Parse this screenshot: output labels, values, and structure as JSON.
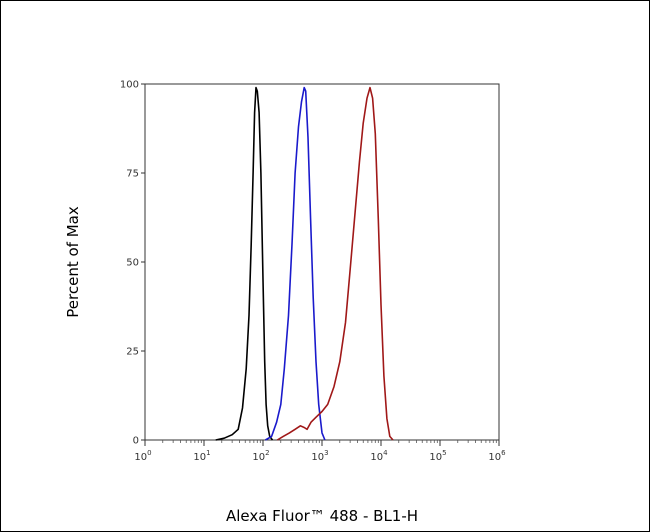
{
  "chart_data": {
    "type": "line",
    "xlabel": "Alexa Fluor™ 488 - BL1-H",
    "ylabel": "Percent of Max",
    "x_scale": "log",
    "xlim": [
      1,
      1000000
    ],
    "ylim": [
      0,
      100
    ],
    "y_ticks": [
      {
        "value": 0,
        "label": "0"
      },
      {
        "value": 25,
        "label": "25"
      },
      {
        "value": 50,
        "label": "50"
      },
      {
        "value": 75,
        "label": "75"
      },
      {
        "value": 100,
        "label": "100"
      }
    ],
    "x_ticks": [
      {
        "value": 1,
        "base": "10",
        "exp": "0"
      },
      {
        "value": 10,
        "base": "10",
        "exp": "1"
      },
      {
        "value": 100,
        "base": "10",
        "exp": "2"
      },
      {
        "value": 1000,
        "base": "10",
        "exp": "3"
      },
      {
        "value": 10000,
        "base": "10",
        "exp": "4"
      },
      {
        "value": 100000,
        "base": "10",
        "exp": "5"
      },
      {
        "value": 1000000,
        "base": "10",
        "exp": "6"
      }
    ],
    "grid": false,
    "series": [
      {
        "color": "#000000",
        "points": [
          [
            15.8,
            0
          ],
          [
            22,
            0.5
          ],
          [
            30,
            1.5
          ],
          [
            38,
            3
          ],
          [
            45,
            9
          ],
          [
            52,
            20
          ],
          [
            58,
            35
          ],
          [
            63,
            55
          ],
          [
            68,
            75
          ],
          [
            72,
            92
          ],
          [
            76,
            99
          ],
          [
            80,
            98
          ],
          [
            86,
            92
          ],
          [
            92,
            75
          ],
          [
            100,
            45
          ],
          [
            107,
            22
          ],
          [
            113,
            10
          ],
          [
            120,
            4
          ],
          [
            130,
            1
          ],
          [
            145,
            0
          ]
        ]
      },
      {
        "color": "#1a1acc",
        "points": [
          [
            110,
            0
          ],
          [
            140,
            1
          ],
          [
            170,
            5
          ],
          [
            200,
            10
          ],
          [
            230,
            20
          ],
          [
            270,
            35
          ],
          [
            310,
            55
          ],
          [
            350,
            75
          ],
          [
            400,
            88
          ],
          [
            450,
            95
          ],
          [
            500,
            99
          ],
          [
            530,
            98
          ],
          [
            580,
            85
          ],
          [
            640,
            62
          ],
          [
            710,
            40
          ],
          [
            790,
            22
          ],
          [
            880,
            10
          ],
          [
            1000,
            2
          ],
          [
            1120,
            0
          ]
        ]
      },
      {
        "color": "#a01818",
        "points": [
          [
            175,
            0
          ],
          [
            220,
            1
          ],
          [
            280,
            2
          ],
          [
            350,
            3
          ],
          [
            430,
            4
          ],
          [
            500,
            3.5
          ],
          [
            560,
            3
          ],
          [
            650,
            5
          ],
          [
            800,
            6.5
          ],
          [
            1000,
            8
          ],
          [
            1250,
            10
          ],
          [
            1600,
            15
          ],
          [
            2000,
            22
          ],
          [
            2500,
            33
          ],
          [
            3000,
            48
          ],
          [
            3600,
            63
          ],
          [
            4300,
            78
          ],
          [
            5000,
            89
          ],
          [
            5800,
            96
          ],
          [
            6500,
            99
          ],
          [
            7200,
            96
          ],
          [
            8000,
            86
          ],
          [
            9000,
            62
          ],
          [
            10000,
            38
          ],
          [
            11200,
            18
          ],
          [
            12600,
            6
          ],
          [
            14100,
            1
          ],
          [
            16000,
            0
          ]
        ]
      }
    ]
  }
}
